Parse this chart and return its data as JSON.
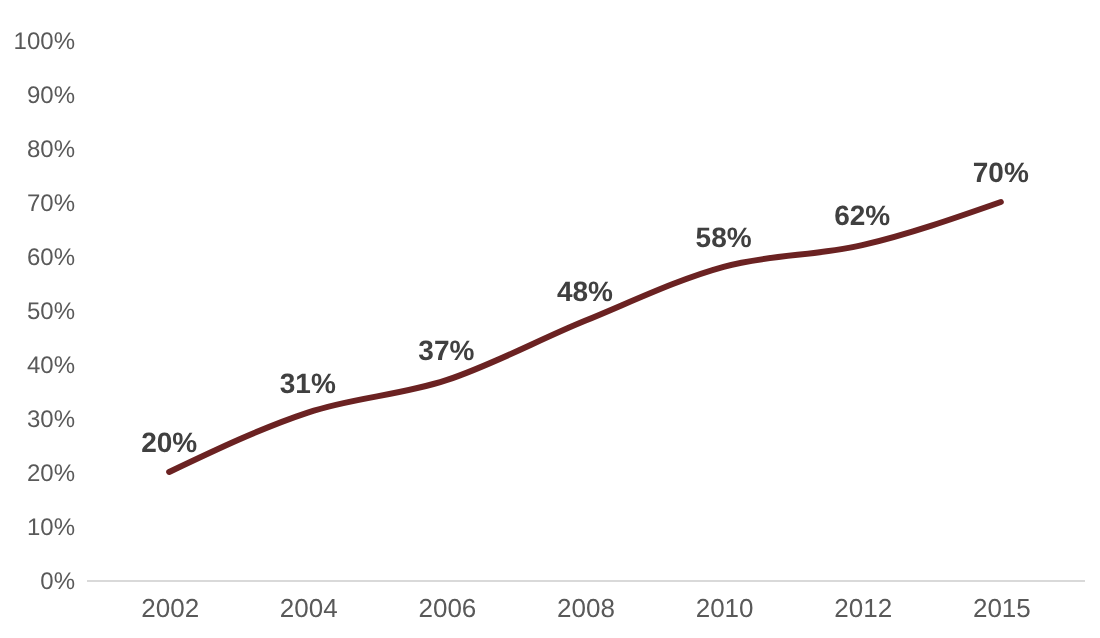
{
  "chart_data": {
    "type": "line",
    "categories": [
      "2002",
      "2004",
      "2006",
      "2008",
      "2010",
      "2012",
      "2015"
    ],
    "series": [
      {
        "color": "#6b2222",
        "values": [
          20,
          31,
          37,
          48,
          58,
          62,
          70
        ],
        "value_labels": [
          "20%",
          "31%",
          "37%",
          "48%",
          "58%",
          "62%",
          "70%"
        ]
      }
    ],
    "ylim": [
      0,
      100
    ],
    "yticks": [
      {
        "value": 0,
        "label": "0%"
      },
      {
        "value": 10,
        "label": "10%"
      },
      {
        "value": 20,
        "label": "20%"
      },
      {
        "value": 30,
        "label": "30%"
      },
      {
        "value": 40,
        "label": "40%"
      },
      {
        "value": 50,
        "label": "50%"
      },
      {
        "value": 60,
        "label": "60%"
      },
      {
        "value": 70,
        "label": "70%"
      },
      {
        "value": 80,
        "label": "80%"
      },
      {
        "value": 90,
        "label": "90%"
      },
      {
        "value": 100,
        "label": "100%"
      }
    ],
    "line_style": "solid",
    "marker": "none"
  }
}
